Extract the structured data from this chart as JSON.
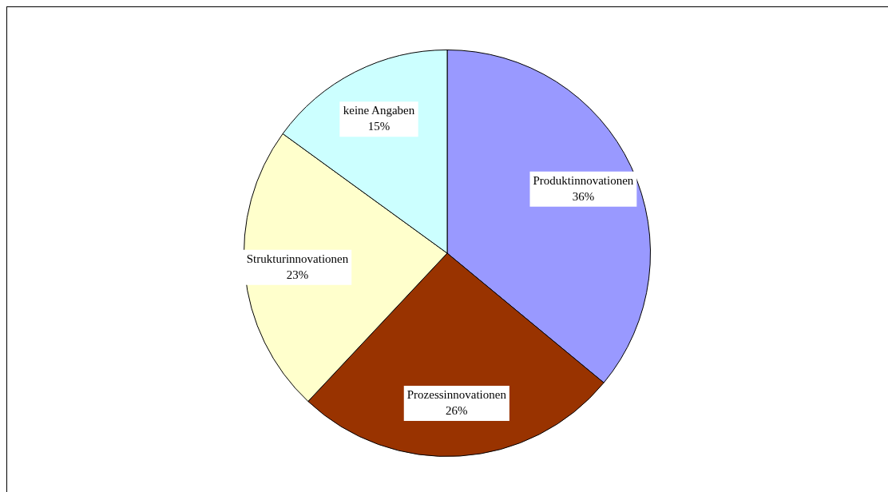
{
  "chart_data": {
    "type": "pie",
    "categories": [
      "Produktinnovationen",
      "Prozessinnovationen",
      "Strukturinnovationen",
      "keine Angaben"
    ],
    "values": [
      36,
      26,
      23,
      15
    ],
    "colors": [
      "#9999ff",
      "#993300",
      "#ffffcc",
      "#ccffff"
    ],
    "value_labels": [
      "36%",
      "26%",
      "23%",
      "15%"
    ],
    "legend": false
  }
}
